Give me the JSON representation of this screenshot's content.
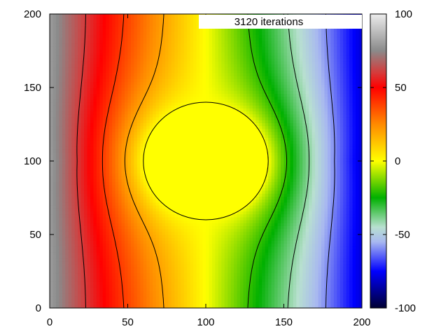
{
  "chart_data": {
    "type": "heatmap",
    "title": "",
    "xlabel": "",
    "ylabel": "",
    "xlim": [
      0,
      200
    ],
    "ylim": [
      0,
      200
    ],
    "x_ticks": [
      0,
      50,
      100,
      150,
      200
    ],
    "y_ticks": [
      0,
      50,
      100,
      150,
      200
    ],
    "x_tick_labels": [
      "0",
      "50",
      "100",
      "150",
      "200"
    ],
    "y_tick_labels": [
      "0",
      "50",
      "100",
      "150",
      "200"
    ],
    "annotation": "3120 iterations",
    "colorbar": {
      "range": [
        -100,
        100
      ],
      "ticks": [
        -100,
        -50,
        0,
        50,
        100
      ],
      "tick_labels": [
        "-100",
        "-50",
        "0",
        "50",
        "100"
      ],
      "palette": [
        {
          "value": 100,
          "color": "#ececec"
        },
        {
          "value": 75,
          "color": "#8a8a8a"
        },
        {
          "value": 60,
          "color": "#d63a3a"
        },
        {
          "value": 50,
          "color": "#ff0000"
        },
        {
          "value": 25,
          "color": "#ff8a00"
        },
        {
          "value": 10,
          "color": "#ffd000"
        },
        {
          "value": 0,
          "color": "#ffff00"
        },
        {
          "value": -25,
          "color": "#00b000"
        },
        {
          "value": -45,
          "color": "#b8e0d0"
        },
        {
          "value": -55,
          "color": "#a8b8f0"
        },
        {
          "value": -75,
          "color": "#0000ff"
        },
        {
          "value": -100,
          "color": "#000033"
        }
      ]
    },
    "field": {
      "description": "potential decreasing left to right; circular equipotential region of value 0 centered at (100,100) radius 40",
      "left_value": 100,
      "right_value": -100,
      "circle": {
        "cx": 100,
        "cy": 100,
        "r": 40,
        "value": 0
      }
    },
    "contour_levels": [
      -80,
      -60,
      -40,
      -20,
      0,
      20,
      40,
      60,
      80
    ]
  }
}
